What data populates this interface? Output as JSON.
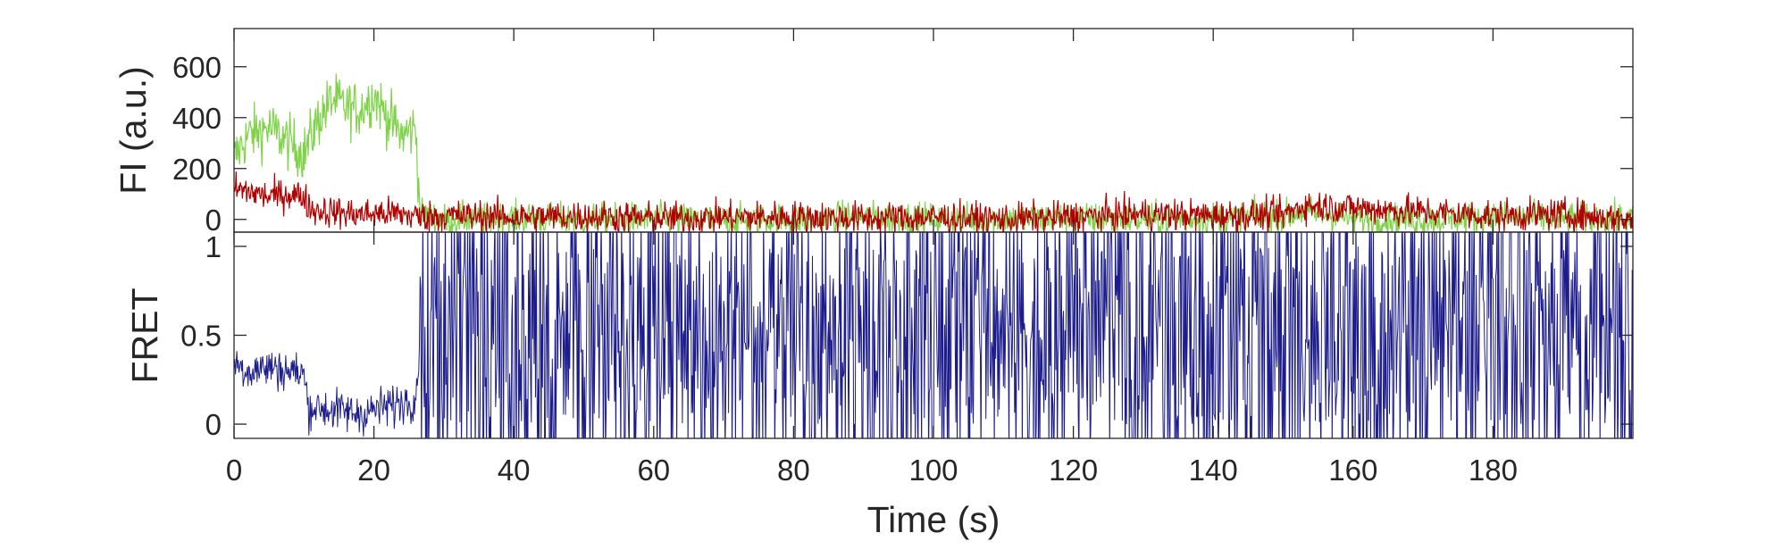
{
  "chart_data": [
    {
      "type": "line",
      "ylabel": "FI (a.u.)",
      "xlabel": "",
      "xlim": [
        0,
        200
      ],
      "ylim": [
        -50,
        750
      ],
      "yticks": [
        0,
        200,
        400,
        600
      ],
      "ytick_labels": [
        "0",
        "200",
        "400",
        "600"
      ],
      "grid": false,
      "series": [
        {
          "color": "#7ed348",
          "x": [
            0,
            2,
            5,
            8,
            10,
            12,
            14,
            16,
            18,
            20,
            22,
            24,
            26,
            26.6,
            30,
            40,
            50,
            60,
            70,
            80,
            90,
            100,
            110,
            120,
            130,
            140,
            150,
            153,
            160,
            170,
            180,
            190,
            200
          ],
          "values": [
            240,
            330,
            360,
            300,
            260,
            390,
            470,
            440,
            430,
            490,
            400,
            330,
            360,
            20,
            0,
            5,
            0,
            3,
            -5,
            0,
            8,
            2,
            0,
            4,
            0,
            6,
            10,
            30,
            5,
            0,
            8,
            2,
            0
          ]
        },
        {
          "color": "#b00000",
          "x": [
            0,
            2,
            5,
            8,
            10,
            11,
            14,
            18,
            22,
            26,
            26.6,
            30,
            40,
            50,
            60,
            70,
            80,
            90,
            100,
            110,
            120,
            130,
            140,
            150,
            153,
            160,
            170,
            180,
            190,
            200
          ],
          "values": [
            120,
            110,
            90,
            100,
            90,
            40,
            30,
            20,
            25,
            15,
            10,
            15,
            10,
            12,
            5,
            8,
            10,
            5,
            8,
            0,
            10,
            20,
            15,
            18,
            55,
            45,
            30,
            15,
            20,
            0
          ]
        }
      ]
    },
    {
      "type": "line",
      "ylabel": "FRET",
      "xlabel": "Time (s)",
      "xlim": [
        0,
        200
      ],
      "ylim": [
        -0.08,
        1.08
      ],
      "yticks": [
        0,
        0.5,
        1
      ],
      "ytick_labels": [
        "0",
        "0.5",
        "1"
      ],
      "xticks": [
        0,
        20,
        40,
        60,
        80,
        100,
        120,
        140,
        160,
        180
      ],
      "xtick_labels": [
        "0",
        "20",
        "40",
        "60",
        "80",
        "100",
        "120",
        "140",
        "160",
        "180"
      ],
      "grid": false,
      "series": [
        {
          "color": "#1c1c8c",
          "x": [
            0,
            2,
            5,
            8,
            10,
            10.6,
            14,
            18,
            22,
            26,
            26.6,
            40,
            60,
            80,
            100,
            120,
            140,
            160,
            180,
            200
          ],
          "values": [
            0.35,
            0.3,
            0.32,
            0.3,
            0.28,
            0.1,
            0.08,
            0.06,
            0.1,
            0.15,
            0.5,
            0.5,
            0.5,
            0.5,
            0.5,
            0.5,
            0.5,
            0.5,
            0.5,
            0.5
          ]
        }
      ]
    }
  ]
}
